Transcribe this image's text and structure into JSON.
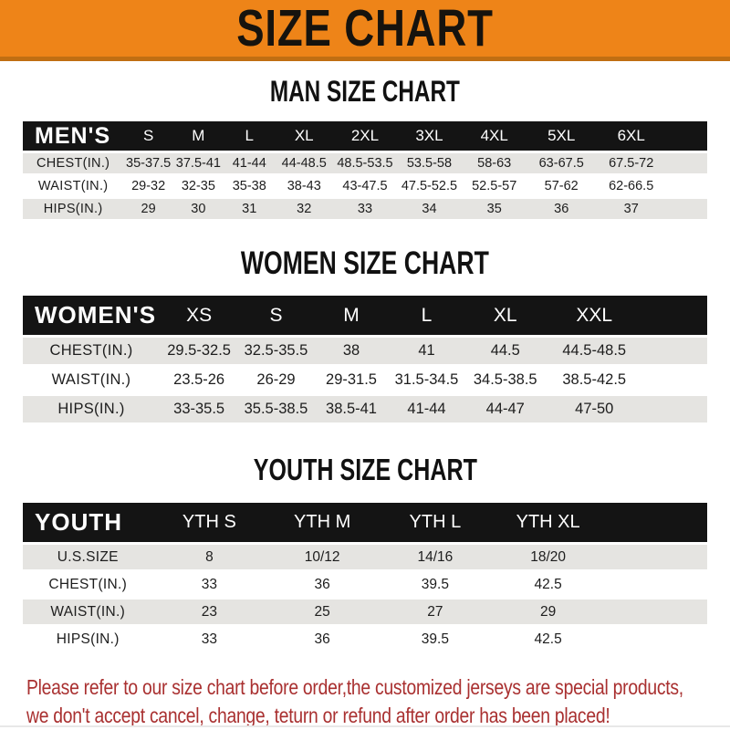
{
  "banner": {
    "title": "SIZE CHART"
  },
  "sections": [
    {
      "id": "men",
      "heading": "MAN SIZE CHART",
      "table": {
        "corner_label": "MEN'S",
        "columns": [
          "S",
          "M",
          "L",
          "XL",
          "2XL",
          "3XL",
          "4XL",
          "5XL",
          "6XL"
        ],
        "rows": [
          {
            "label": "CHEST(IN.)",
            "values": [
              "35-37.5",
              "37.5-41",
              "41-44",
              "44-48.5",
              "48.5-53.5",
              "53.5-58",
              "58-63",
              "63-67.5",
              "67.5-72"
            ]
          },
          {
            "label": "WAIST(IN.)",
            "values": [
              "29-32",
              "32-35",
              "35-38",
              "38-43",
              "43-47.5",
              "47.5-52.5",
              "52.5-57",
              "57-62",
              "62-66.5"
            ]
          },
          {
            "label": "HIPS(IN.)",
            "values": [
              "29",
              "30",
              "31",
              "32",
              "33",
              "34",
              "35",
              "36",
              "37"
            ]
          }
        ]
      }
    },
    {
      "id": "women",
      "heading": "WOMEN SIZE CHART",
      "table": {
        "corner_label": "WOMEN'S",
        "columns": [
          "XS",
          "S",
          "M",
          "L",
          "XL",
          "XXL"
        ],
        "rows": [
          {
            "label": "CHEST(IN.)",
            "values": [
              "29.5-32.5",
              "32.5-35.5",
              "38",
              "41",
              "44.5",
              "44.5-48.5"
            ]
          },
          {
            "label": "WAIST(IN.)",
            "values": [
              "23.5-26",
              "26-29",
              "29-31.5",
              "31.5-34.5",
              "34.5-38.5",
              "38.5-42.5"
            ]
          },
          {
            "label": "HIPS(IN.)",
            "values": [
              "33-35.5",
              "35.5-38.5",
              "38.5-41",
              "41-44",
              "44-47",
              "47-50"
            ]
          }
        ]
      }
    },
    {
      "id": "youth",
      "heading": "YOUTH SIZE CHART",
      "table": {
        "corner_label": "YOUTH",
        "columns": [
          "YTH S",
          "YTH M",
          "YTH L",
          "YTH XL"
        ],
        "rows": [
          {
            "label": "U.S.SIZE",
            "values": [
              "8",
              "10/12",
              "14/16",
              "18/20"
            ]
          },
          {
            "label": "CHEST(IN.)",
            "values": [
              "33",
              "36",
              "39.5",
              "42.5"
            ]
          },
          {
            "label": "WAIST(IN.)",
            "values": [
              "23",
              "25",
              "27",
              "29"
            ]
          },
          {
            "label": "HIPS(IN.)",
            "values": [
              "33",
              "36",
              "39.5",
              "42.5"
            ]
          }
        ]
      }
    }
  ],
  "footer": {
    "line1": "Please refer to our size chart before order,the customized jerseys are special products,",
    "line2": "we don't accept cancel, change, teturn or refund after order has been placed!"
  },
  "colors": {
    "banner_bg": "#EE8418",
    "banner_border": "#C06E12",
    "header_bar_bg": "#141414",
    "header_bar_text": "#FFFFFF",
    "row_alt_bg": "#E5E4E1",
    "row_bg": "#FFFFFF",
    "heading_text": "#111111",
    "footer_text": "#A93030"
  }
}
